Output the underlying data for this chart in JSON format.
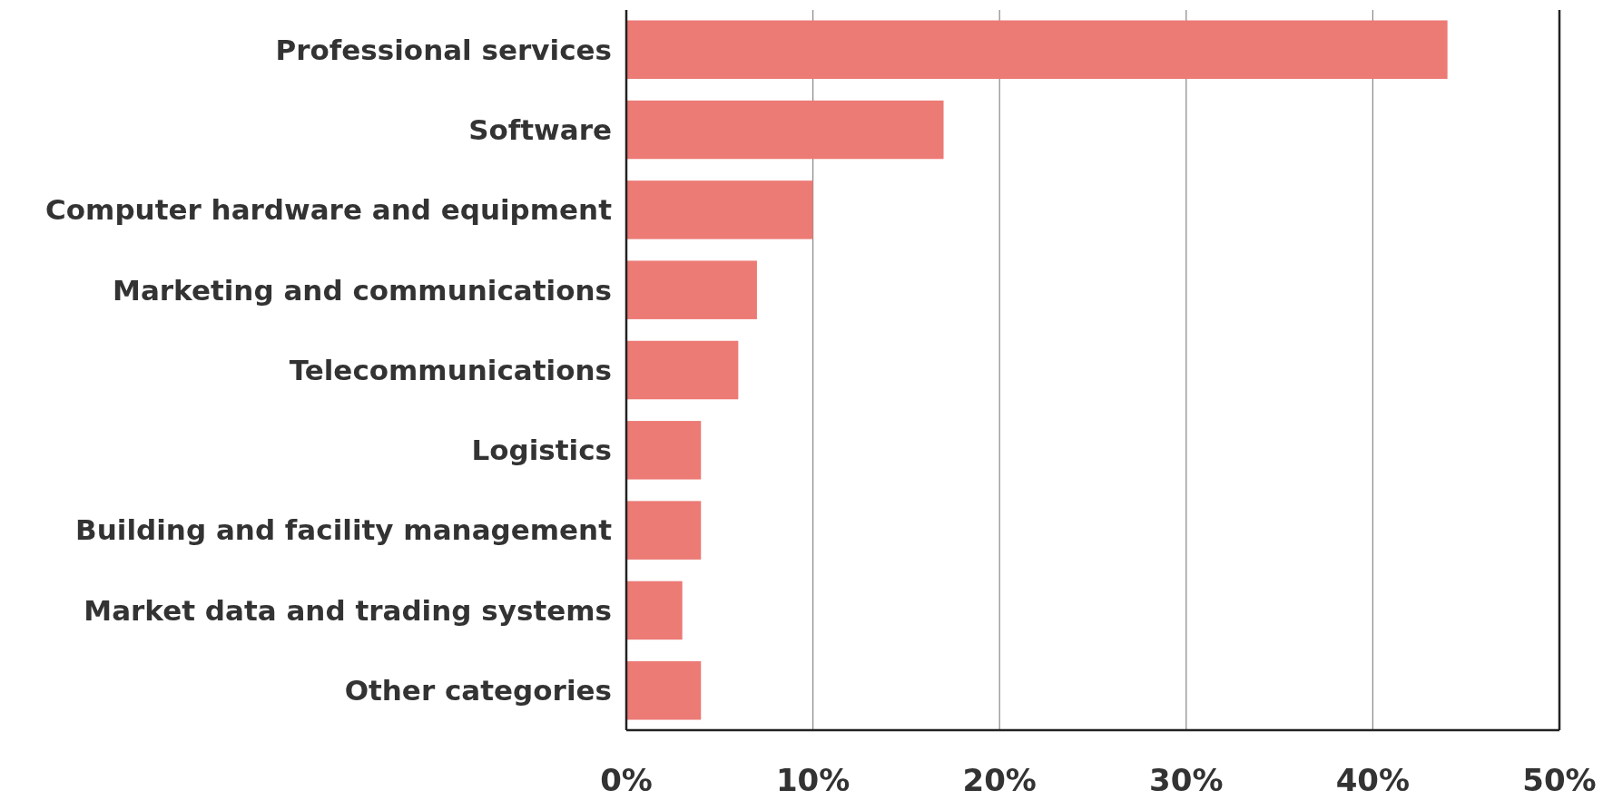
{
  "chart_data": {
    "type": "bar",
    "orientation": "horizontal",
    "categories": [
      "Professional services",
      "Software",
      "Computer hardware and equipment",
      "Marketing and communications",
      "Telecommunications",
      "Logistics",
      "Building and facility management",
      "Market data and trading systems",
      "Other categories"
    ],
    "values": [
      44,
      17,
      10,
      7,
      6,
      4,
      4,
      3,
      4
    ],
    "color": "#ec7a75",
    "xlim": [
      0,
      50
    ],
    "xticks": [
      {
        "value": 0,
        "label": "0%"
      },
      {
        "value": 10,
        "label": "10%"
      },
      {
        "value": 20,
        "label": "20%"
      },
      {
        "value": 30,
        "label": "30%"
      },
      {
        "value": 40,
        "label": "40%"
      },
      {
        "value": 50,
        "label": "50%"
      }
    ],
    "grid": "x"
  }
}
